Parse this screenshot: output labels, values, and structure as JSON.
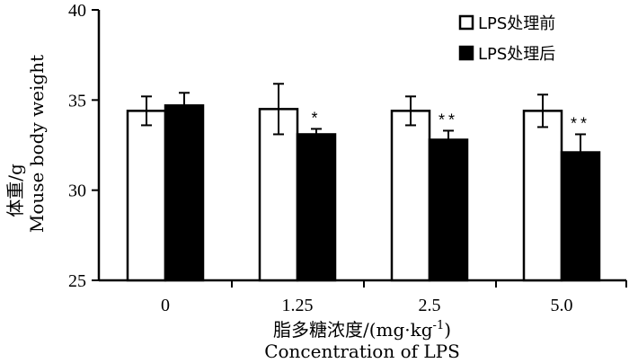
{
  "chart_data": {
    "type": "bar",
    "categories": [
      "0",
      "1.25",
      "2.5",
      "5.0"
    ],
    "xlabel_cn": "脂多糖浓度/(mg·kg",
    "xlabel_cn_sup": "-1",
    "xlabel_cn_close": ")",
    "xlabel_en": "Concentration of LPS",
    "ylabel_cn": "体重/g",
    "ylabel_en": "Mouse body weight",
    "ylim": [
      25,
      40
    ],
    "yticks": [
      "25",
      "30",
      "35",
      "40"
    ],
    "legend_position": "top-right",
    "series": [
      {
        "name": "LPS处理前",
        "color": "#ffffff",
        "values": [
          34.4,
          34.5,
          34.4,
          34.4
        ],
        "errors": [
          0.8,
          1.4,
          0.8,
          0.9
        ],
        "significance": [
          "",
          "",
          "",
          ""
        ]
      },
      {
        "name": "LPS处理后",
        "color": "#000000",
        "values": [
          34.7,
          33.1,
          32.8,
          32.1
        ],
        "errors": [
          0.7,
          0.3,
          0.5,
          1.0
        ],
        "significance": [
          "",
          "*",
          "**",
          "**"
        ]
      }
    ]
  }
}
